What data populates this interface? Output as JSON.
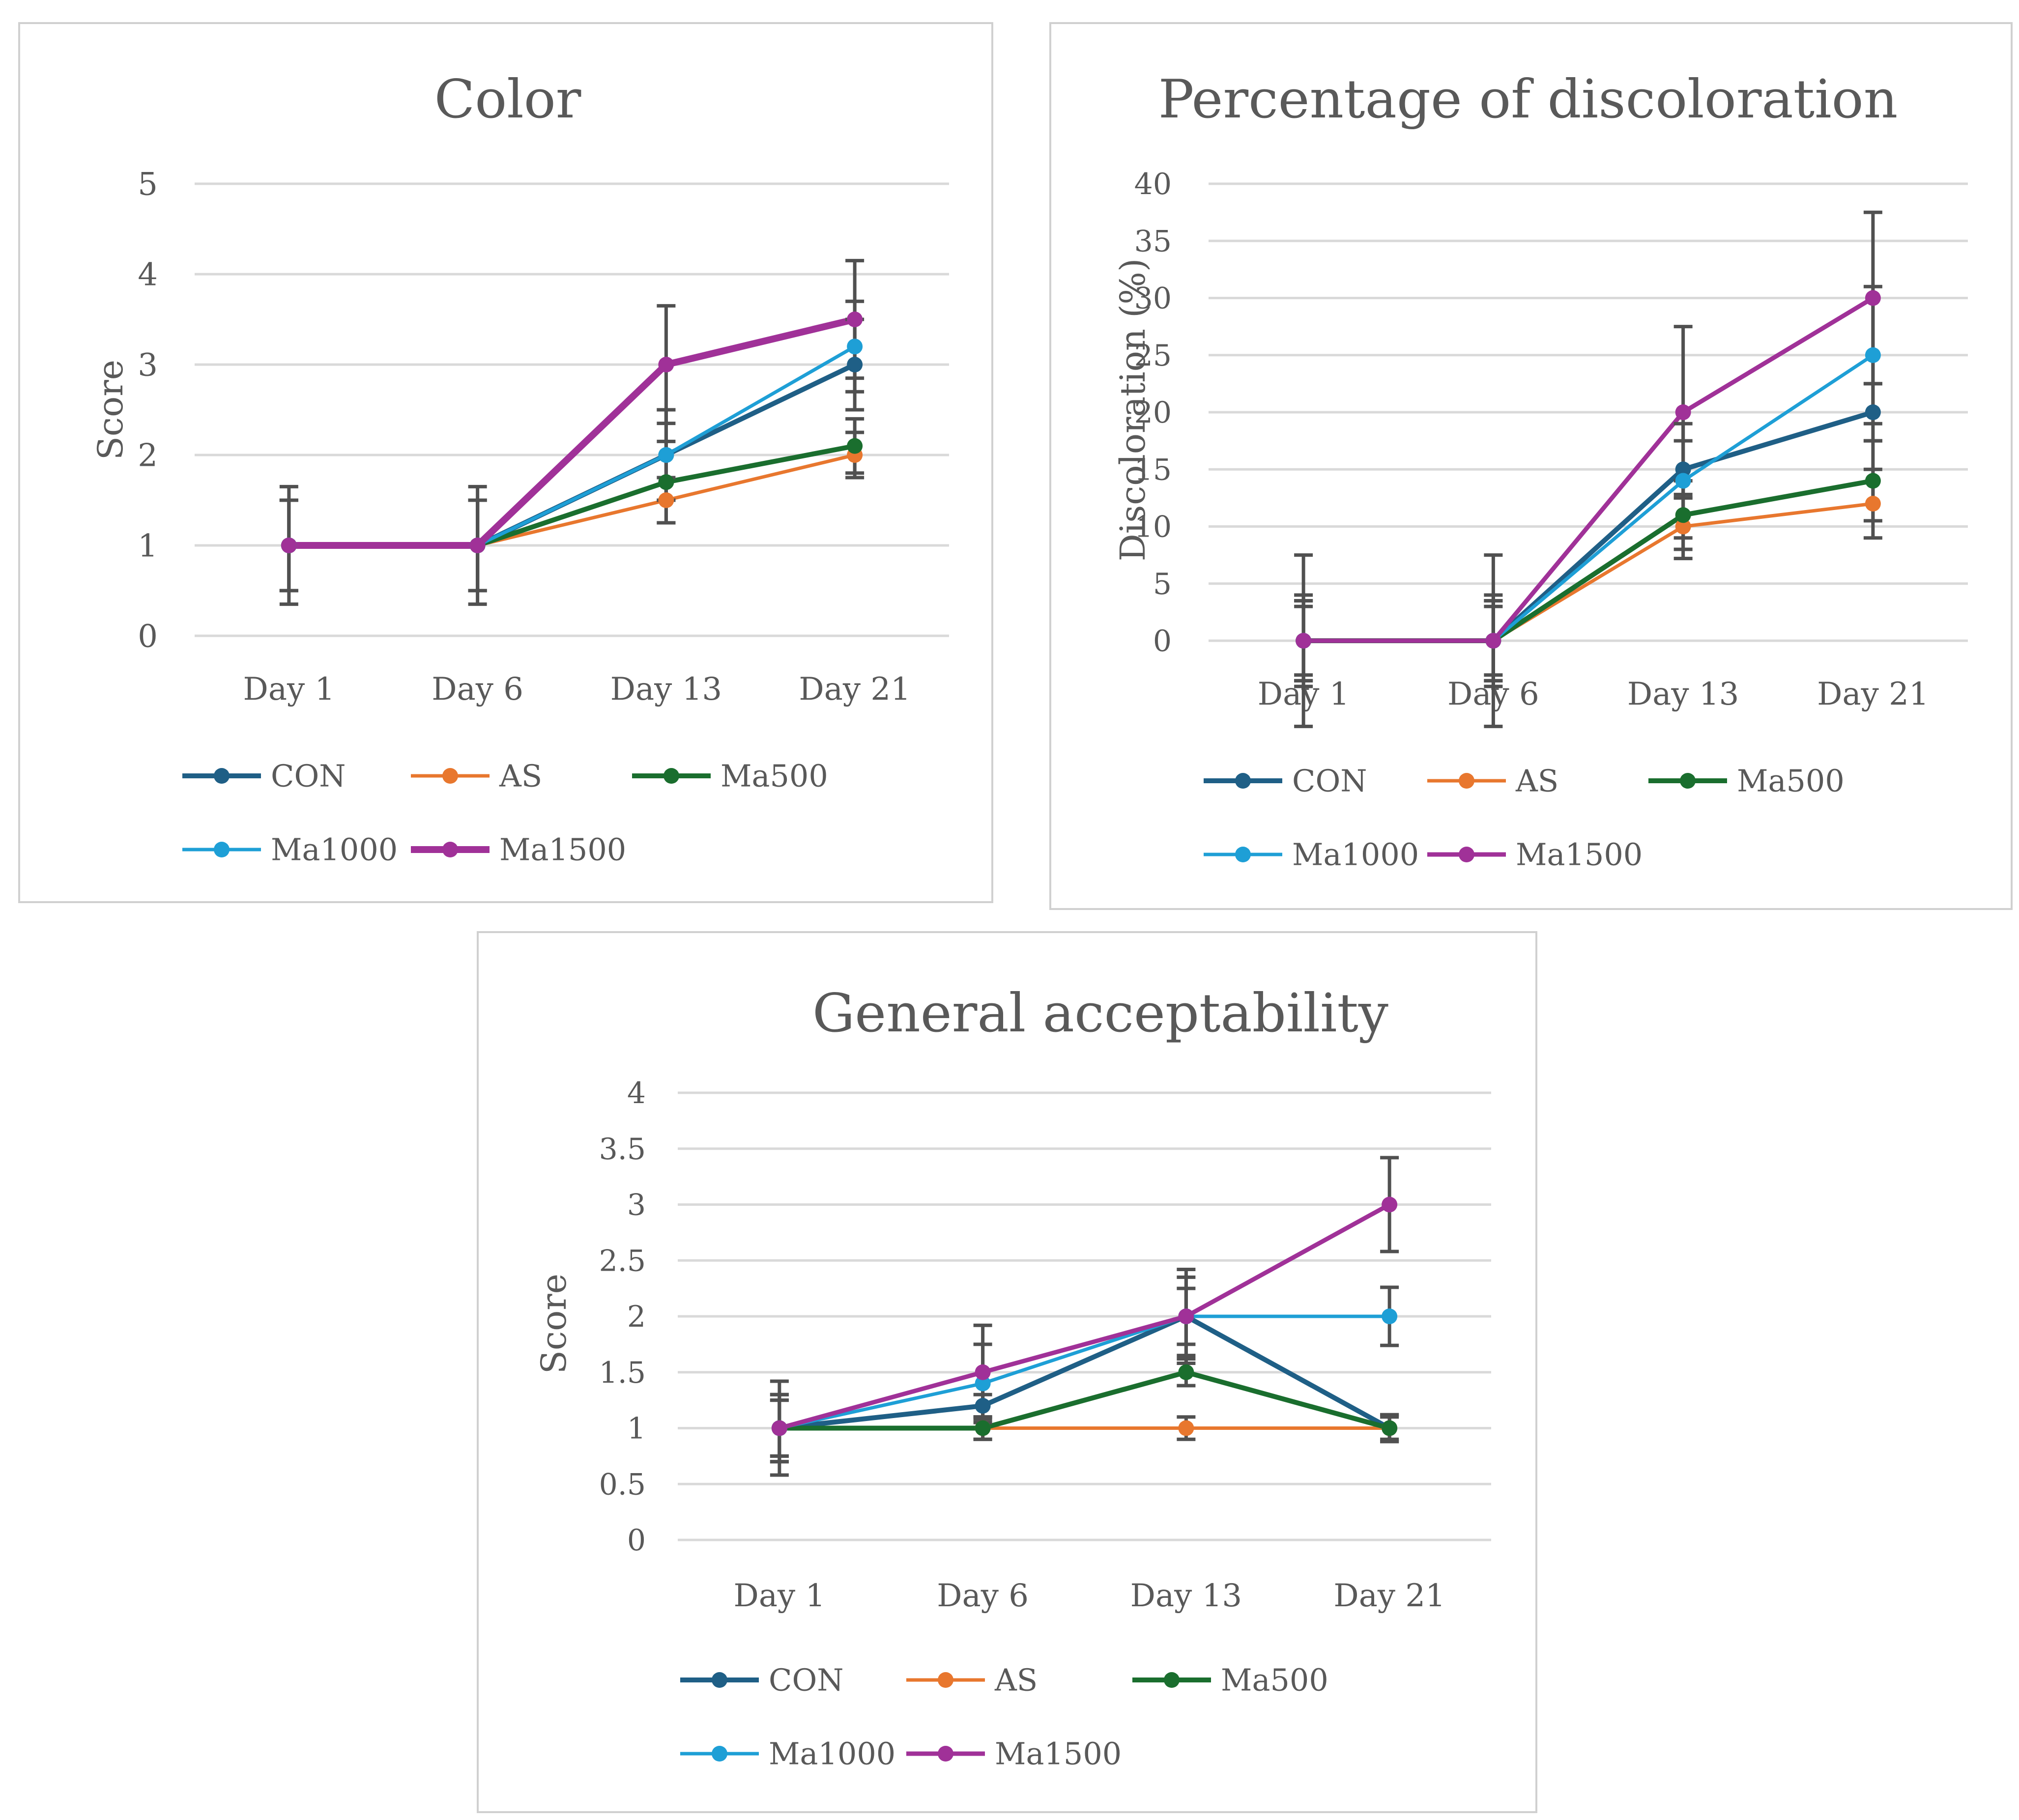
{
  "chart_data": [
    {
      "type": "line",
      "title": "Color",
      "xlabel": "",
      "ylabel": "Score",
      "ylim": [
        0,
        5
      ],
      "yticks": [
        0,
        1,
        2,
        3,
        4,
        5
      ],
      "ytick_labels": [
        "0",
        "1",
        "2",
        "3",
        "4",
        "5"
      ],
      "categories": [
        "Day 1",
        "Day 6",
        "Day 13",
        "Day 21"
      ],
      "grid": true,
      "legend_position": "bottom",
      "series": [
        {
          "name": "CON",
          "color": "#1f5f86",
          "values": [
            1,
            1,
            2,
            3
          ],
          "errors": [
            0.5,
            0.5,
            0.5,
            0.5
          ]
        },
        {
          "name": "AS",
          "color": "#e8772e",
          "values": [
            1,
            1,
            1.5,
            2
          ],
          "errors": [
            0.5,
            0.5,
            0.25,
            0.25
          ]
        },
        {
          "name": "Ma500",
          "color": "#1a6e2e",
          "values": [
            1,
            1,
            1.7,
            2.1
          ],
          "errors": [
            0.5,
            0.5,
            0.45,
            0.3
          ]
        },
        {
          "name": "Ma1000",
          "color": "#1e9fd6",
          "values": [
            1,
            1,
            2,
            3.2
          ],
          "errors": [
            0.5,
            0.5,
            0.5,
            0.5
          ]
        },
        {
          "name": "Ma1500",
          "color": "#a03198",
          "values": [
            1,
            1,
            3,
            3.5
          ],
          "errors": [
            0.65,
            0.65,
            0.65,
            0.65
          ]
        }
      ]
    },
    {
      "type": "line",
      "title": "Percentage of discoloration",
      "xlabel": "",
      "ylabel": "Discoloration (%)",
      "ylim": [
        0,
        40
      ],
      "yticks": [
        0,
        5,
        10,
        15,
        20,
        25,
        30,
        35,
        40
      ],
      "ytick_labels": [
        "0",
        "5",
        "10",
        "15",
        "20",
        "25",
        "30",
        "35",
        "40"
      ],
      "categories": [
        "Day 1",
        "Day 6",
        "Day 13",
        "Day 21"
      ],
      "grid": true,
      "legend_position": "bottom",
      "series": [
        {
          "name": "CON",
          "color": "#1f5f86",
          "values": [
            0,
            0,
            15,
            20
          ],
          "errors": [
            3.5,
            3.5,
            2.5,
            2.5
          ]
        },
        {
          "name": "AS",
          "color": "#e8772e",
          "values": [
            0,
            0,
            10,
            12
          ],
          "errors": [
            3,
            3,
            2.8,
            3
          ]
        },
        {
          "name": "Ma500",
          "color": "#1a6e2e",
          "values": [
            0,
            0,
            11,
            14
          ],
          "errors": [
            3.5,
            3.5,
            3,
            3.5
          ]
        },
        {
          "name": "Ma1000",
          "color": "#1e9fd6",
          "values": [
            0,
            0,
            14,
            25
          ],
          "errors": [
            4,
            4,
            5,
            6
          ]
        },
        {
          "name": "Ma1500",
          "color": "#a03198",
          "values": [
            0,
            0,
            20,
            30
          ],
          "errors": [
            7.5,
            7.5,
            7.5,
            7.5
          ]
        }
      ]
    },
    {
      "type": "line",
      "title": "General acceptability",
      "xlabel": "",
      "ylabel": "Score",
      "ylim": [
        0,
        4
      ],
      "yticks": [
        0,
        0.5,
        1,
        1.5,
        2,
        2.5,
        3,
        3.5,
        4
      ],
      "ytick_labels": [
        "0",
        "0.5",
        "1",
        "1.5",
        "2",
        "2.5",
        "3",
        "3.5",
        "4"
      ],
      "categories": [
        "Day 1",
        "Day 6",
        "Day 13",
        "Day 21"
      ],
      "grid": true,
      "legend_position": "bottom",
      "series": [
        {
          "name": "CON",
          "color": "#1f5f86",
          "values": [
            1,
            1.2,
            2,
            1
          ],
          "errors": [
            0.25,
            0.1,
            0.25,
            0.12
          ]
        },
        {
          "name": "AS",
          "color": "#e8772e",
          "values": [
            1,
            1,
            1,
            1
          ],
          "errors": [
            0.25,
            0.1,
            0.1,
            0.1
          ]
        },
        {
          "name": "Ma500",
          "color": "#1a6e2e",
          "values": [
            1,
            1,
            1.5,
            1
          ],
          "errors": [
            0.3,
            0.1,
            0.12,
            0.12
          ]
        },
        {
          "name": "Ma1000",
          "color": "#1e9fd6",
          "values": [
            1,
            1.4,
            2,
            2
          ],
          "errors": [
            0.3,
            0.35,
            0.35,
            0.26
          ]
        },
        {
          "name": "Ma1500",
          "color": "#a03198",
          "values": [
            1,
            1.5,
            2,
            3
          ],
          "errors": [
            0.42,
            0.42,
            0.42,
            0.42
          ]
        }
      ]
    }
  ]
}
